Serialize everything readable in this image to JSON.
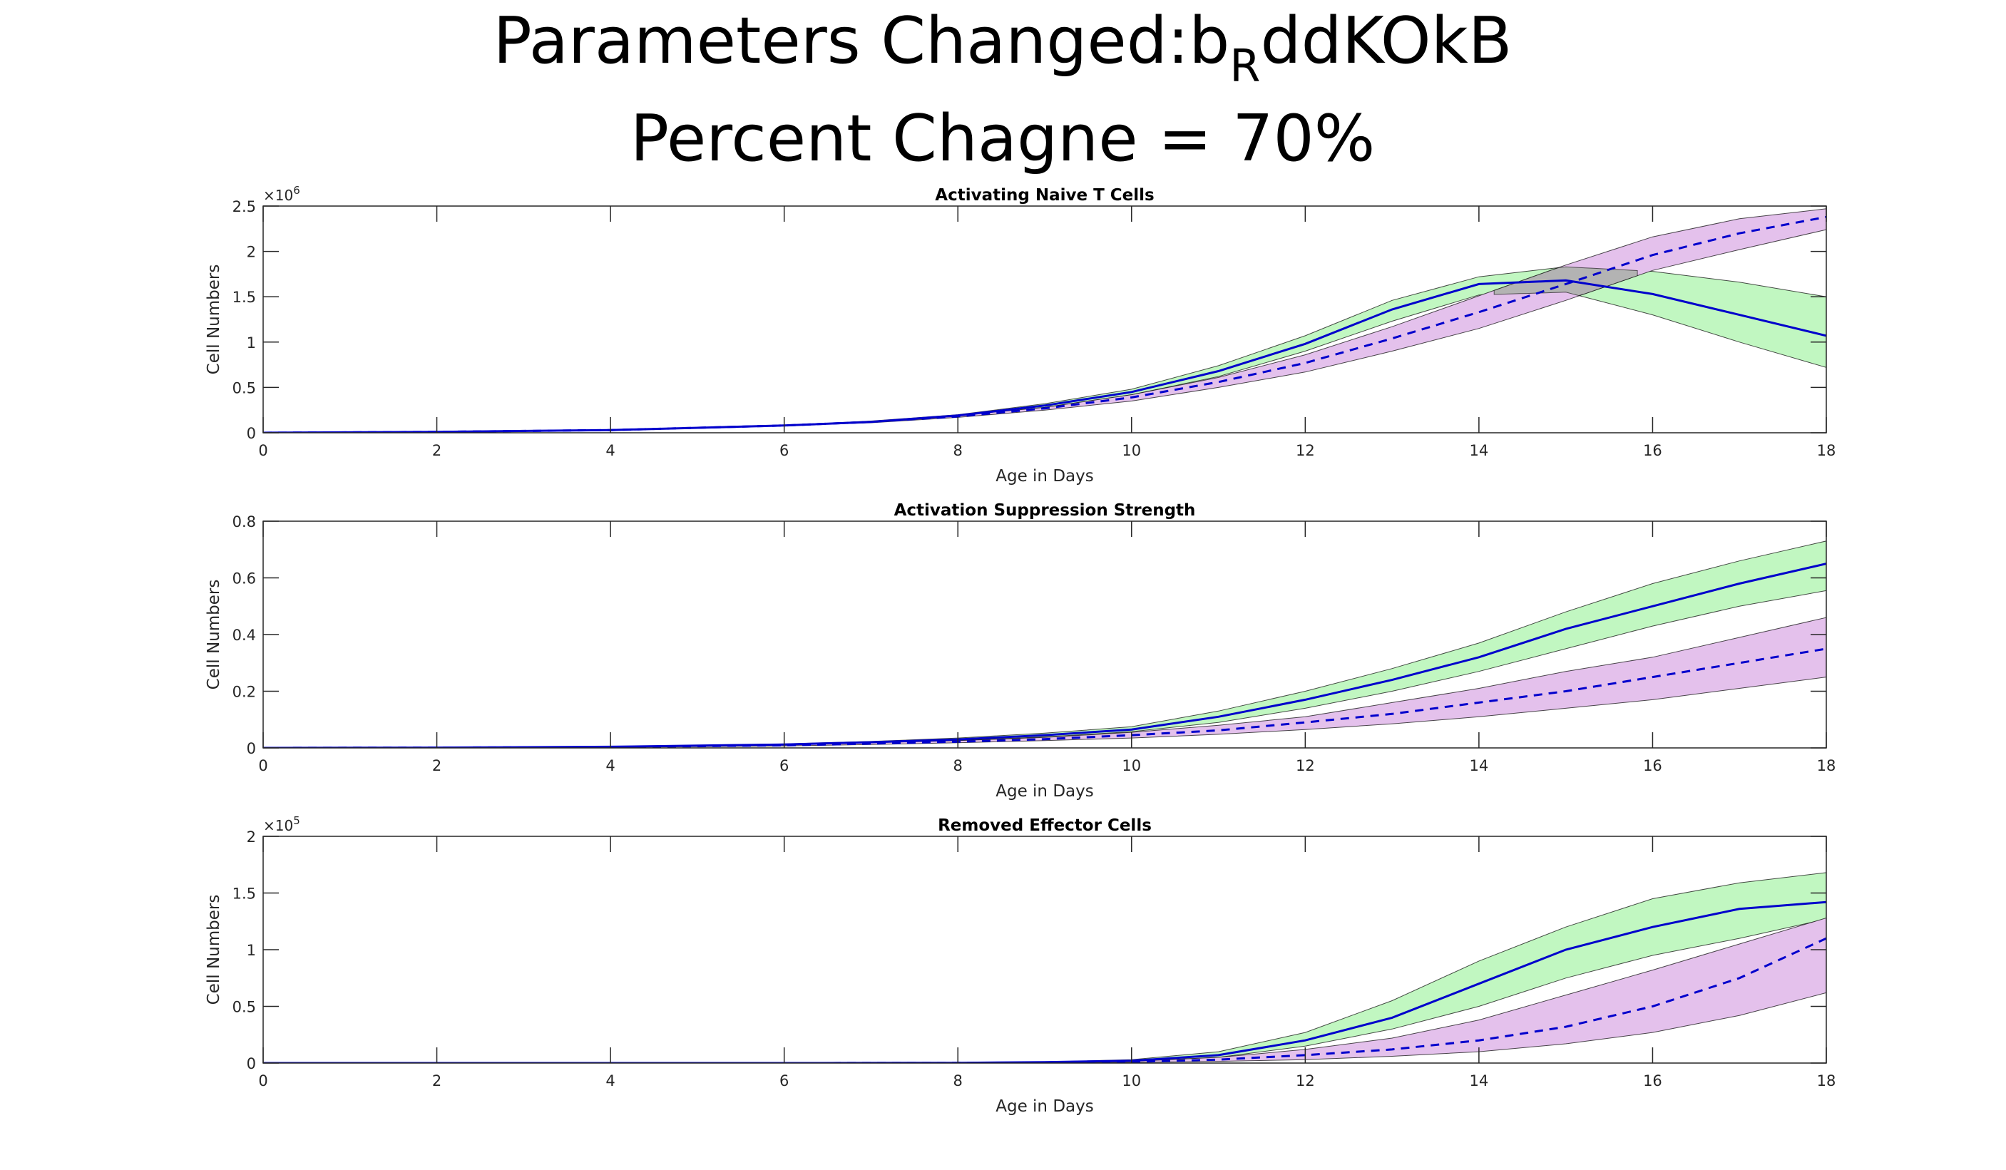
{
  "figure": {
    "title_line1_prefix": "Parameters Changed:b",
    "title_line1_subscript": "R",
    "title_line1_suffix": "ddKOkB",
    "title_line2": "Percent Chagne = 70%"
  },
  "colors": {
    "band_a": "#c1f7c1",
    "band_b": "#e4c1ec",
    "overlap": "#b3b3b3",
    "line": "#0000cc",
    "axis": "#262626"
  },
  "chart_data": [
    {
      "type": "line",
      "title": "Activating Naive T Cells",
      "xlabel": "Age in Days",
      "ylabel": "Cell Numbers",
      "exponent_prefix": "×10",
      "exponent_power": "6",
      "xlim": [
        0,
        18
      ],
      "ylim": [
        0,
        2.5
      ],
      "xticks": [
        "0",
        "2",
        "4",
        "6",
        "8",
        "10",
        "12",
        "14",
        "16",
        "18"
      ],
      "yticks": [
        "0",
        "0.5",
        "1",
        "1.5",
        "2",
        "2.5"
      ],
      "x": [
        0,
        2,
        4,
        6,
        7,
        8,
        9,
        10,
        11,
        12,
        13,
        14,
        15,
        16,
        17,
        18
      ],
      "series": [
        {
          "style": "solid",
          "values": [
            0,
            0.01,
            0.03,
            0.08,
            0.12,
            0.19,
            0.3,
            0.45,
            0.68,
            0.98,
            1.36,
            1.64,
            1.68,
            1.53,
            1.3,
            1.07
          ],
          "lower": [
            0,
            0.01,
            0.03,
            0.08,
            0.12,
            0.18,
            0.28,
            0.42,
            0.62,
            0.9,
            1.23,
            1.52,
            1.55,
            1.3,
            1.0,
            0.72
          ],
          "upper": [
            0,
            0.01,
            0.03,
            0.08,
            0.13,
            0.2,
            0.32,
            0.48,
            0.74,
            1.07,
            1.46,
            1.72,
            1.83,
            1.78,
            1.66,
            1.5
          ]
        },
        {
          "style": "dashed",
          "values": [
            0,
            0.01,
            0.03,
            0.08,
            0.12,
            0.18,
            0.27,
            0.39,
            0.56,
            0.77,
            1.04,
            1.33,
            1.64,
            1.96,
            2.2,
            2.38
          ],
          "lower": [
            0,
            0.01,
            0.03,
            0.08,
            0.11,
            0.17,
            0.25,
            0.35,
            0.5,
            0.67,
            0.9,
            1.15,
            1.46,
            1.79,
            2.02,
            2.24
          ],
          "upper": [
            0,
            0.01,
            0.03,
            0.08,
            0.12,
            0.19,
            0.28,
            0.42,
            0.61,
            0.86,
            1.17,
            1.51,
            1.85,
            2.16,
            2.36,
            2.47
          ]
        }
      ]
    },
    {
      "type": "line",
      "title": "Activation Suppression Strength",
      "xlabel": "Age in Days",
      "ylabel": "Cell Numbers",
      "exponent_prefix": "",
      "exponent_power": "",
      "xlim": [
        0,
        18
      ],
      "ylim": [
        0,
        0.8
      ],
      "xticks": [
        "0",
        "2",
        "4",
        "6",
        "8",
        "10",
        "12",
        "14",
        "16",
        "18"
      ],
      "yticks": [
        "0",
        "0.2",
        "0.4",
        "0.6",
        "0.8"
      ],
      "x": [
        0,
        2,
        4,
        6,
        7,
        8,
        9,
        10,
        11,
        12,
        13,
        14,
        15,
        16,
        17,
        18
      ],
      "series": [
        {
          "style": "solid",
          "values": [
            0,
            0.001,
            0.004,
            0.012,
            0.02,
            0.03,
            0.045,
            0.065,
            0.11,
            0.17,
            0.24,
            0.32,
            0.42,
            0.5,
            0.58,
            0.65
          ],
          "lower": [
            0,
            0.001,
            0.003,
            0.01,
            0.017,
            0.026,
            0.039,
            0.057,
            0.09,
            0.14,
            0.2,
            0.27,
            0.35,
            0.43,
            0.5,
            0.555
          ],
          "upper": [
            0,
            0.001,
            0.005,
            0.014,
            0.023,
            0.035,
            0.052,
            0.075,
            0.13,
            0.2,
            0.28,
            0.37,
            0.48,
            0.58,
            0.66,
            0.73
          ]
        },
        {
          "style": "dashed",
          "values": [
            0,
            0.001,
            0.003,
            0.009,
            0.015,
            0.022,
            0.031,
            0.045,
            0.062,
            0.09,
            0.12,
            0.16,
            0.2,
            0.25,
            0.3,
            0.35
          ],
          "lower": [
            0,
            0.001,
            0.002,
            0.007,
            0.012,
            0.018,
            0.026,
            0.035,
            0.048,
            0.065,
            0.085,
            0.11,
            0.14,
            0.17,
            0.21,
            0.25
          ],
          "upper": [
            0,
            0.001,
            0.004,
            0.011,
            0.018,
            0.026,
            0.037,
            0.055,
            0.08,
            0.11,
            0.16,
            0.21,
            0.27,
            0.32,
            0.39,
            0.46
          ]
        }
      ]
    },
    {
      "type": "line",
      "title": "Removed Effector Cells",
      "xlabel": "Age in Days",
      "ylabel": "Cell Numbers",
      "exponent_prefix": "×10",
      "exponent_power": "5",
      "xlim": [
        0,
        18
      ],
      "ylim": [
        0,
        2
      ],
      "xticks": [
        "0",
        "2",
        "4",
        "6",
        "8",
        "10",
        "12",
        "14",
        "16",
        "18"
      ],
      "yticks": [
        "0",
        "0.5",
        "1",
        "1.5",
        "2"
      ],
      "x": [
        0,
        2,
        4,
        6,
        8,
        9,
        10,
        11,
        12,
        13,
        14,
        15,
        16,
        17,
        18
      ],
      "series": [
        {
          "style": "solid",
          "values": [
            0,
            0,
            0,
            0,
            0.002,
            0.008,
            0.02,
            0.07,
            0.2,
            0.4,
            0.7,
            1.0,
            1.2,
            1.36,
            1.42
          ],
          "lower": [
            0,
            0,
            0,
            0,
            0.001,
            0.006,
            0.015,
            0.05,
            0.15,
            0.3,
            0.5,
            0.75,
            0.95,
            1.1,
            1.27
          ],
          "upper": [
            0,
            0,
            0,
            0,
            0.003,
            0.01,
            0.03,
            0.1,
            0.27,
            0.55,
            0.9,
            1.2,
            1.45,
            1.59,
            1.68
          ]
        },
        {
          "style": "dashed",
          "values": [
            0,
            0,
            0,
            0,
            0.001,
            0.004,
            0.01,
            0.03,
            0.07,
            0.12,
            0.2,
            0.32,
            0.5,
            0.75,
            1.1
          ],
          "lower": [
            0,
            0,
            0,
            0,
            0.001,
            0.002,
            0.006,
            0.015,
            0.03,
            0.06,
            0.1,
            0.17,
            0.27,
            0.42,
            0.62
          ],
          "upper": [
            0,
            0,
            0,
            0,
            0.002,
            0.006,
            0.015,
            0.05,
            0.12,
            0.22,
            0.38,
            0.6,
            0.82,
            1.05,
            1.28
          ]
        }
      ]
    }
  ]
}
